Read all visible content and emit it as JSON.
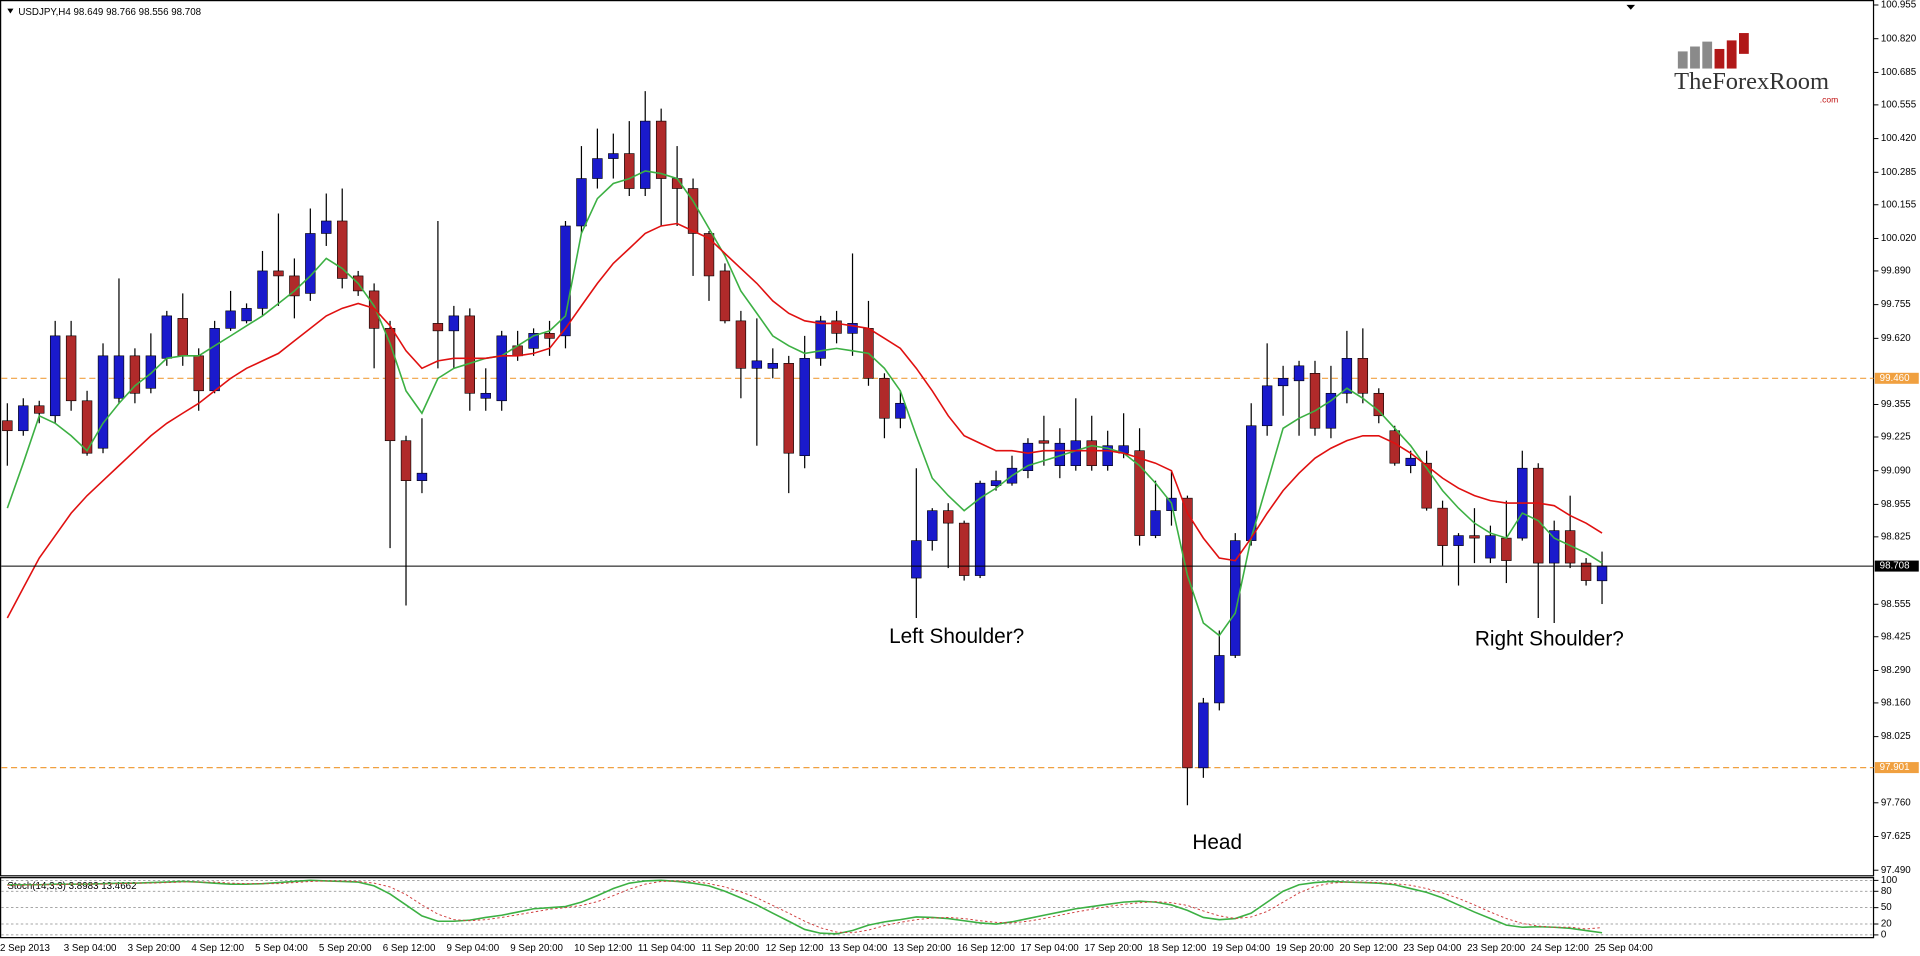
{
  "chart_data": [
    {
      "type": "candlestick",
      "title": "USDJPY,H4",
      "categories": [
        "2 Sep 2013",
        null,
        null,
        null,
        "3 Sep 04:00",
        null,
        null,
        null,
        "3 Sep 20:00",
        null,
        null,
        null,
        "4 Sep 12:00",
        null,
        null,
        null,
        "5 Sep 04:00",
        null,
        null,
        null,
        "5 Sep 20:00",
        null,
        null,
        null,
        "6 Sep 12:00",
        null,
        null,
        null,
        "9 Sep 04:00",
        null,
        null,
        null,
        "9 Sep 20:00",
        null,
        null,
        null,
        "10 Sep 12:00",
        null,
        null,
        null,
        "11 Sep 04:00",
        null,
        null,
        null,
        "11 Sep 20:00",
        null,
        null,
        null,
        "12 Sep 12:00",
        null,
        null,
        null,
        "13 Sep 04:00",
        null,
        null,
        null,
        "13 Sep 20:00",
        null,
        null,
        null,
        "16 Sep 12:00",
        null,
        null,
        null,
        "17 Sep 04:00",
        null,
        null,
        null,
        "17 Sep 20:00",
        null,
        null,
        null,
        "18 Sep 12:00",
        null,
        null,
        null,
        "19 Sep 04:00",
        null,
        null,
        null,
        "19 Sep 20:00",
        null,
        null,
        null,
        "20 Sep 12:00",
        null,
        null,
        null,
        "23 Sep 04:00",
        null,
        null,
        null,
        "23 Sep 20:00",
        null,
        null,
        null,
        "24 Sep 12:00",
        null,
        null,
        null,
        "25 Sep 04:00"
      ],
      "open": [
        99.29,
        99.25,
        99.35,
        99.31,
        99.63,
        99.37,
        99.18,
        99.38,
        99.55,
        99.42,
        99.54,
        99.7,
        99.55,
        99.41,
        99.66,
        99.69,
        99.74,
        99.89,
        99.87,
        99.8,
        100.04,
        100.09,
        99.87,
        99.81,
        99.66,
        99.21,
        99.05,
        99.68,
        99.65,
        99.71,
        99.38,
        99.37,
        99.59,
        99.58,
        99.64,
        99.63,
        100.07,
        100.26,
        100.34,
        100.36,
        100.22,
        100.49,
        100.26,
        100.22,
        100.04,
        99.89,
        99.69,
        99.5,
        99.5,
        99.52,
        99.15,
        99.54,
        99.69,
        99.64,
        99.66,
        99.46,
        99.3,
        98.66,
        98.81,
        98.93,
        98.88,
        98.67,
        99.03,
        99.04,
        99.09,
        99.21,
        99.11,
        99.11,
        99.21,
        99.11,
        99.16,
        99.17,
        98.83,
        98.93,
        98.98,
        97.9,
        98.16,
        98.35,
        98.81,
        99.27,
        99.43,
        99.45,
        99.48,
        99.26,
        99.4,
        99.54,
        99.4,
        99.25,
        99.11,
        99.12,
        98.94,
        98.79,
        98.83,
        98.74,
        98.82,
        98.82,
        99.1,
        98.72,
        98.85,
        98.72,
        98.649
      ],
      "high": [
        99.36,
        99.38,
        99.37,
        99.69,
        99.69,
        99.41,
        99.6,
        99.86,
        99.58,
        99.64,
        99.73,
        99.8,
        99.58,
        99.69,
        99.81,
        99.76,
        99.97,
        100.12,
        99.94,
        100.14,
        100.2,
        100.22,
        99.89,
        99.84,
        99.69,
        99.23,
        99.3,
        100.09,
        99.75,
        99.74,
        99.5,
        99.65,
        99.65,
        99.66,
        99.69,
        100.09,
        100.39,
        100.46,
        100.44,
        100.49,
        100.61,
        100.54,
        100.39,
        100.26,
        100.05,
        99.92,
        99.73,
        99.7,
        99.58,
        99.55,
        99.63,
        99.71,
        99.73,
        99.96,
        99.77,
        99.48,
        99.41,
        99.1,
        98.94,
        98.96,
        98.89,
        99.05,
        99.09,
        99.15,
        99.22,
        99.31,
        99.26,
        99.38,
        99.31,
        99.25,
        99.32,
        99.26,
        99.05,
        99.09,
        98.99,
        98.18,
        98.45,
        98.84,
        99.36,
        99.6,
        99.51,
        99.53,
        99.53,
        99.51,
        99.65,
        99.66,
        99.42,
        99.27,
        99.17,
        99.17,
        98.97,
        98.84,
        98.94,
        98.87,
        98.97,
        99.17,
        99.12,
        98.89,
        98.99,
        98.74,
        98.766
      ],
      "low": [
        99.11,
        99.23,
        99.28,
        99.28,
        99.33,
        99.15,
        99.16,
        99.36,
        99.36,
        99.4,
        99.51,
        99.51,
        99.33,
        99.4,
        99.65,
        99.68,
        99.71,
        99.75,
        99.7,
        99.77,
        99.99,
        99.82,
        99.79,
        99.5,
        98.78,
        98.55,
        99.0,
        99.5,
        99.5,
        99.33,
        99.33,
        99.33,
        99.53,
        99.55,
        99.55,
        99.58,
        100.04,
        100.22,
        100.26,
        100.19,
        100.19,
        100.07,
        100.07,
        99.87,
        99.77,
        99.68,
        99.38,
        99.19,
        99.46,
        99.0,
        99.1,
        99.51,
        99.6,
        99.55,
        99.43,
        99.22,
        99.26,
        98.5,
        98.77,
        98.7,
        98.65,
        98.66,
        99.01,
        99.03,
        99.06,
        99.11,
        99.06,
        99.09,
        99.09,
        99.09,
        99.14,
        98.79,
        98.82,
        98.87,
        97.75,
        97.86,
        98.13,
        98.34,
        98.79,
        99.23,
        99.31,
        99.23,
        99.23,
        99.22,
        99.36,
        99.36,
        99.28,
        99.11,
        99.08,
        98.93,
        98.71,
        98.63,
        98.72,
        98.72,
        98.64,
        98.81,
        98.5,
        98.48,
        98.7,
        98.63,
        98.556
      ],
      "close": [
        99.25,
        99.35,
        99.32,
        99.63,
        99.37,
        99.16,
        99.55,
        99.55,
        99.4,
        99.55,
        99.71,
        99.55,
        99.41,
        99.66,
        99.73,
        99.74,
        99.89,
        99.87,
        99.79,
        100.04,
        100.09,
        99.86,
        99.81,
        99.66,
        99.21,
        99.05,
        99.08,
        99.65,
        99.71,
        99.4,
        99.4,
        99.63,
        99.55,
        99.64,
        99.62,
        100.07,
        100.26,
        100.34,
        100.36,
        100.22,
        100.49,
        100.26,
        100.22,
        100.04,
        99.87,
        99.69,
        99.5,
        99.53,
        99.52,
        99.16,
        99.54,
        99.69,
        99.64,
        99.68,
        99.46,
        99.3,
        99.36,
        98.81,
        98.93,
        98.88,
        98.67,
        99.04,
        99.05,
        99.1,
        99.2,
        99.2,
        99.2,
        99.21,
        99.11,
        99.19,
        99.19,
        98.83,
        98.93,
        98.98,
        97.9,
        98.16,
        98.35,
        98.81,
        99.27,
        99.43,
        99.46,
        99.51,
        99.26,
        99.4,
        99.54,
        99.4,
        99.31,
        99.12,
        99.14,
        98.94,
        98.79,
        98.83,
        98.82,
        98.83,
        98.73,
        99.1,
        98.72,
        98.85,
        98.72,
        98.65,
        98.708
      ],
      "up_color": "#1a1acc",
      "down_color": "#b02a2a",
      "overlays": [
        {
          "color": "#3cb043",
          "values": [
            98.94,
            99.12,
            99.31,
            99.28,
            99.23,
            99.17,
            99.28,
            99.36,
            99.43,
            99.48,
            99.54,
            99.55,
            99.55,
            99.59,
            99.63,
            99.67,
            99.71,
            99.76,
            99.81,
            99.87,
            99.94,
            99.9,
            99.84,
            99.75,
            99.6,
            99.41,
            99.32,
            99.46,
            99.5,
            99.52,
            99.54,
            99.55,
            99.59,
            99.63,
            99.65,
            99.71,
            100.04,
            100.18,
            100.24,
            100.26,
            100.29,
            100.28,
            100.26,
            100.17,
            100.06,
            99.95,
            99.81,
            99.72,
            99.63,
            99.59,
            99.56,
            99.57,
            99.58,
            99.57,
            99.56,
            99.5,
            99.41,
            99.23,
            99.06,
            98.99,
            98.93,
            98.98,
            99.02,
            99.07,
            99.11,
            99.13,
            99.15,
            99.17,
            99.19,
            99.18,
            99.16,
            99.11,
            99.04,
            98.96,
            98.67,
            98.48,
            98.43,
            98.52,
            98.82,
            99.04,
            99.26,
            99.3,
            99.33,
            99.37,
            99.42,
            99.38,
            99.33,
            99.26,
            99.19,
            99.1,
            99.01,
            98.94,
            98.88,
            98.84,
            98.82,
            98.92,
            98.89,
            98.82,
            98.79,
            98.76,
            98.72
          ]
        },
        {
          "color": "#e01010",
          "values": [
            98.5,
            98.62,
            98.74,
            98.83,
            98.92,
            98.99,
            99.05,
            99.11,
            99.17,
            99.23,
            99.28,
            99.32,
            99.36,
            99.41,
            99.46,
            99.5,
            99.53,
            99.56,
            99.61,
            99.66,
            99.71,
            99.74,
            99.76,
            99.74,
            99.67,
            99.57,
            99.5,
            99.53,
            99.54,
            99.54,
            99.54,
            99.55,
            99.55,
            99.56,
            99.58,
            99.66,
            99.75,
            99.84,
            99.92,
            99.98,
            100.04,
            100.07,
            100.08,
            100.05,
            100.02,
            99.96,
            99.9,
            99.84,
            99.77,
            99.72,
            99.69,
            99.68,
            99.68,
            99.67,
            99.66,
            99.62,
            99.58,
            99.5,
            99.41,
            99.31,
            99.23,
            99.2,
            99.17,
            99.17,
            99.16,
            99.17,
            99.17,
            99.17,
            99.17,
            99.17,
            99.16,
            99.14,
            99.12,
            99.09,
            98.92,
            98.82,
            98.74,
            98.73,
            98.82,
            98.92,
            99.01,
            99.08,
            99.14,
            99.18,
            99.21,
            99.23,
            99.23,
            99.2,
            99.16,
            99.11,
            99.06,
            99.02,
            98.99,
            98.97,
            98.96,
            98.96,
            98.96,
            98.95,
            98.91,
            98.88,
            98.84
          ]
        }
      ],
      "levels": [
        {
          "value": 99.46,
          "label": "99.460"
        },
        {
          "value": 97.901,
          "label": "97.901"
        }
      ],
      "level_color": "#f0a040",
      "ylim": [
        97.47,
        100.975
      ],
      "yticks": [
        100.955,
        {
          "value": 100.82,
          "label": "100.820"
        },
        100.685,
        100.555,
        {
          "value": 100.42,
          "label": "100.420"
        },
        100.285,
        100.155,
        {
          "value": 100.02,
          "label": "100.020"
        },
        {
          "value": 99.89,
          "label": "99.890"
        },
        99.755,
        {
          "value": 99.62,
          "label": "99.620"
        },
        99.355,
        99.225,
        {
          "value": 99.09,
          "label": "99.090"
        },
        98.955,
        98.825,
        98.555,
        98.425,
        {
          "value": 98.29,
          "label": "98.290"
        },
        {
          "value": 98.16,
          "label": "98.160"
        },
        98.025,
        {
          "value": 97.76,
          "label": "97.760"
        },
        97.625,
        {
          "value": 97.49,
          "label": "97.490"
        }
      ],
      "annotations": [
        "Left Shoulder?",
        "Right Shoulder?",
        "Head"
      ]
    },
    {
      "type": "line",
      "title": "Stoch(14,3,3)",
      "series": [
        {
          "color": "#3cb043",
          "values": [
            92,
            92,
            92,
            93,
            93,
            93,
            94,
            95,
            95,
            96,
            97,
            98,
            97,
            95,
            93,
            93,
            94,
            96,
            98,
            100,
            99,
            98,
            97,
            90,
            75,
            55,
            35,
            25,
            25,
            27,
            32,
            36,
            42,
            48,
            50,
            52,
            60,
            72,
            85,
            95,
            99,
            100,
            98,
            95,
            90,
            80,
            68,
            55,
            40,
            25,
            10,
            3,
            2,
            8,
            18,
            24,
            28,
            33,
            32,
            30,
            26,
            22,
            20,
            24,
            30,
            36,
            42,
            48,
            52,
            56,
            60,
            62,
            60,
            55,
            45,
            32,
            28,
            30,
            40,
            60,
            80,
            92,
            96,
            98,
            97,
            96,
            95,
            92,
            85,
            78,
            68,
            55,
            42,
            30,
            18,
            14,
            15,
            14,
            12,
            8,
            3.8983
          ]
        },
        {
          "color": "#d04040",
          "dash": true,
          "values": [
            91,
            91,
            92,
            92,
            93,
            93,
            93,
            94,
            95,
            95,
            96,
            97,
            97,
            97,
            95,
            94,
            94,
            94,
            96,
            98,
            99,
            99,
            98,
            95,
            88,
            74,
            55,
            38,
            28,
            26,
            28,
            32,
            37,
            42,
            47,
            50,
            54,
            61,
            72,
            84,
            93,
            98,
            99,
            98,
            94,
            88,
            79,
            68,
            54,
            40,
            25,
            13,
            5,
            4,
            9,
            17,
            23,
            28,
            31,
            32,
            30,
            26,
            23,
            22,
            25,
            30,
            36,
            42,
            47,
            52,
            56,
            59,
            61,
            59,
            54,
            44,
            35,
            30,
            33,
            43,
            60,
            77,
            89,
            95,
            97,
            97,
            96,
            94,
            91,
            85,
            77,
            67,
            55,
            42,
            30,
            21,
            16,
            14,
            14,
            11,
            13.4662
          ]
        }
      ],
      "ylim": [
        -5,
        105
      ],
      "yticks": [
        0,
        20,
        50,
        80,
        100
      ]
    }
  ],
  "logo": {
    "name": "TheForexRoom",
    "suffix": ".com"
  }
}
